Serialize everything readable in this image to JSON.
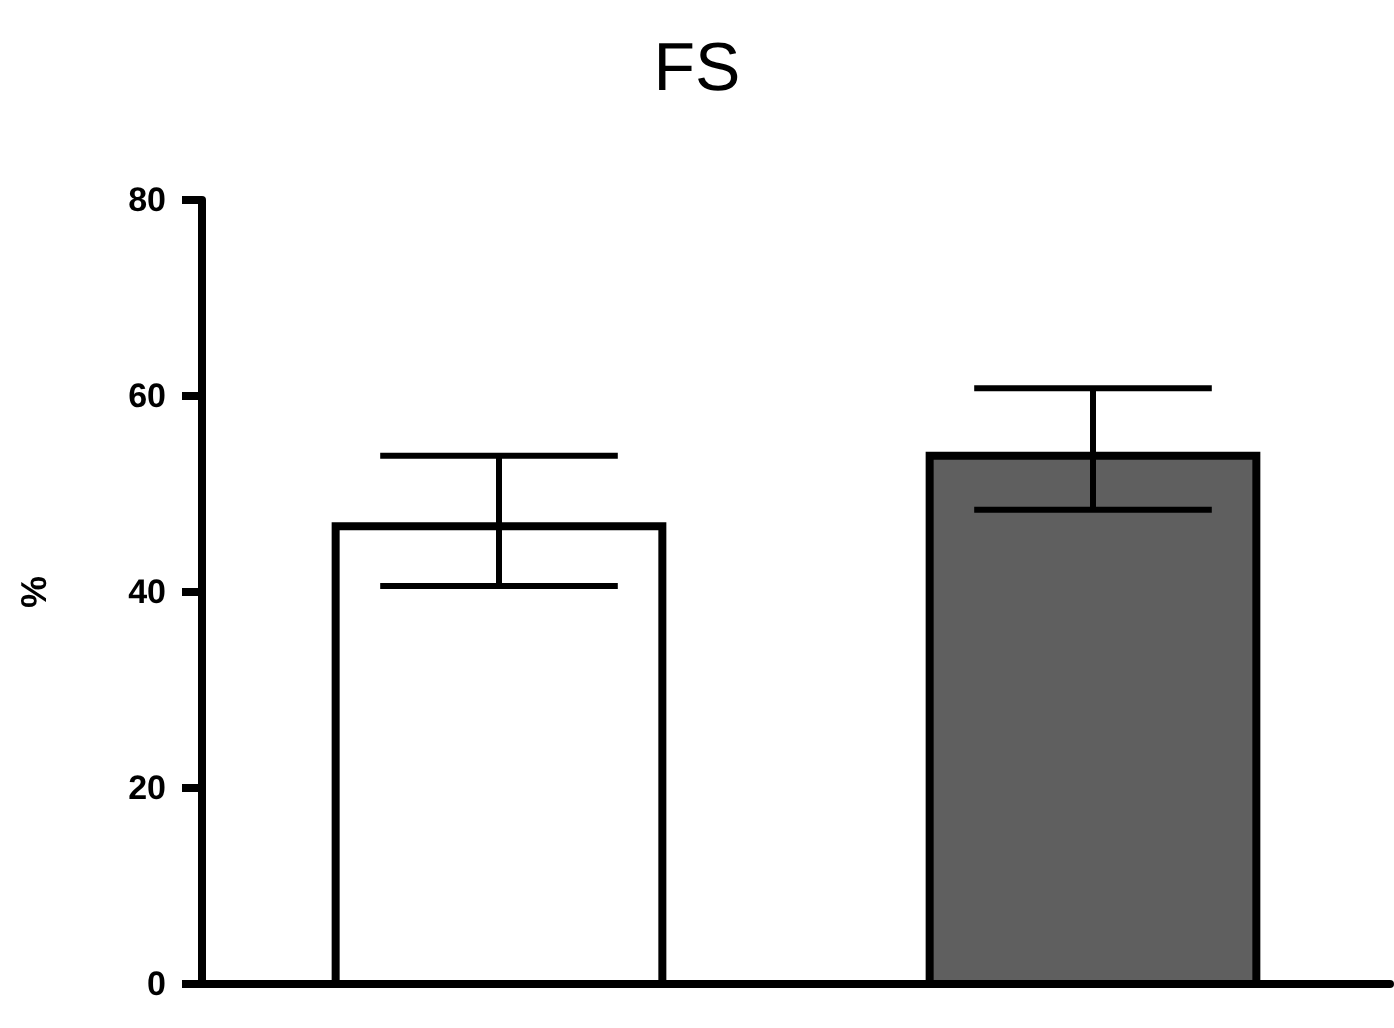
{
  "chart_data": {
    "type": "bar",
    "title": "FS",
    "ylabel": "%",
    "categories": [
      null,
      null
    ],
    "values": [
      46.7,
      53.9
    ],
    "colors": [
      "#ffffff",
      "#5f5f5f"
    ],
    "errors": [
      [
        40.6,
        53.9
      ],
      [
        48.4,
        60.8
      ]
    ],
    "ylim": [
      0,
      80
    ],
    "yticks": [
      0,
      20,
      40,
      60,
      80
    ]
  }
}
